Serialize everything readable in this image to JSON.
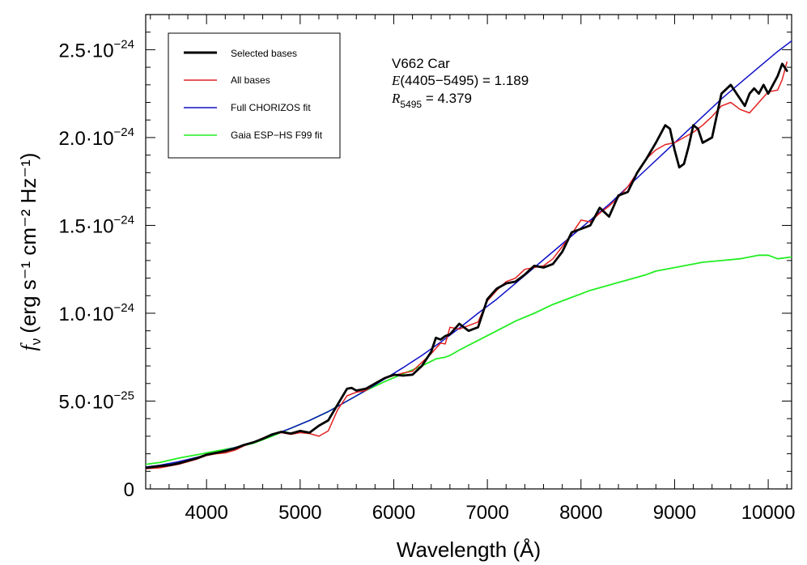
{
  "chart_data": {
    "type": "line",
    "xlabel": "Wavelength (Å)",
    "ylabel_f": "f",
    "ylabel_sub": "ν",
    "ylabel_rest": "(erg s⁻¹ cm⁻² Hz⁻¹)",
    "xlim": [
      3350,
      10250
    ],
    "ylim": [
      0,
      2.7e-24
    ],
    "x_ticks": [
      4000,
      5000,
      6000,
      7000,
      8000,
      9000,
      10000
    ],
    "x_tick_labels": [
      "4000",
      "5000",
      "6000",
      "7000",
      "8000",
      "9000",
      "10000"
    ],
    "y_ticks": [
      0,
      5e-25,
      1e-24,
      1.5e-24,
      2e-24,
      2.5e-24
    ],
    "y_tick_mantissa": [
      "0",
      "5.0·10",
      "1.0·10",
      "1.5·10",
      "2.0·10",
      "2.5·10"
    ],
    "y_tick_exponent": [
      "",
      "−25",
      "−24",
      "−24",
      "−24",
      "−24"
    ],
    "annotation": {
      "line1": "V662 Car",
      "line2_italic": "E",
      "line2_rest": "(4405−5495) = 1.189",
      "line3_italic": "R",
      "line3_sub": "5495",
      "line3_rest": " = 4.379"
    },
    "legend_position": "top-left",
    "series": [
      {
        "name": "Selected bases",
        "color": "#000000",
        "x": [
          3350,
          3500,
          3600,
          3700,
          3800,
          3900,
          4000,
          4100,
          4200,
          4300,
          4400,
          4500,
          4600,
          4700,
          4800,
          4900,
          5000,
          5100,
          5200,
          5300,
          5400,
          5500,
          5550,
          5600,
          5700,
          5800,
          5900,
          6000,
          6100,
          6200,
          6300,
          6400,
          6450,
          6500,
          6550,
          6600,
          6700,
          6800,
          6900,
          7000,
          7100,
          7200,
          7300,
          7400,
          7500,
          7600,
          7700,
          7800,
          7900,
          8000,
          8100,
          8200,
          8300,
          8400,
          8500,
          8600,
          8700,
          8800,
          8900,
          8950,
          9000,
          9050,
          9100,
          9150,
          9200,
          9250,
          9300,
          9400,
          9500,
          9600,
          9700,
          9750,
          9800,
          9850,
          9900,
          9950,
          10000,
          10050,
          10100,
          10150,
          10200
        ],
        "values": [
          1.2e-25,
          1.3e-25,
          1.35e-25,
          1.45e-25,
          1.6e-25,
          1.75e-25,
          1.95e-25,
          2.05e-25,
          2.15e-25,
          2.3e-25,
          2.5e-25,
          2.65e-25,
          2.85e-25,
          3.1e-25,
          3.25e-25,
          3.15e-25,
          3.3e-25,
          3.2e-25,
          3.6e-25,
          3.9e-25,
          4.8e-25,
          5.7e-25,
          5.75e-25,
          5.6e-25,
          5.7e-25,
          6e-25,
          6.3e-25,
          6.5e-25,
          6.45e-25,
          6.5e-25,
          7e-25,
          7.8e-25,
          8.6e-25,
          8.5e-25,
          8.7e-25,
          8.8e-25,
          9.4e-25,
          9e-25,
          9.2e-25,
          1.08e-24,
          1.14e-24,
          1.17e-24,
          1.18e-24,
          1.22e-24,
          1.27e-24,
          1.26e-24,
          1.28e-24,
          1.35e-24,
          1.46e-24,
          1.48e-24,
          1.5e-24,
          1.6e-24,
          1.55e-24,
          1.67e-24,
          1.69e-24,
          1.8e-24,
          1.88e-24,
          1.97e-24,
          2.07e-24,
          2.05e-24,
          1.93e-24,
          1.83e-24,
          1.85e-24,
          1.95e-24,
          2.07e-24,
          2.05e-24,
          1.97e-24,
          2e-24,
          2.25e-24,
          2.3e-24,
          2.22e-24,
          2.18e-24,
          2.25e-24,
          2.28e-24,
          2.25e-24,
          2.3e-24,
          2.25e-24,
          2.3e-24,
          2.35e-24,
          2.42e-24,
          2.38e-24
        ]
      },
      {
        "name": "All bases",
        "color": "#e32020",
        "x": [
          3350,
          3500,
          3600,
          3700,
          3800,
          3900,
          4000,
          4100,
          4200,
          4300,
          4400,
          4500,
          4600,
          4700,
          4800,
          4900,
          5000,
          5100,
          5200,
          5300,
          5400,
          5500,
          5600,
          5700,
          5800,
          5900,
          6000,
          6100,
          6200,
          6300,
          6400,
          6500,
          6550,
          6600,
          6700,
          6800,
          6900,
          7000,
          7100,
          7200,
          7300,
          7400,
          7500,
          7600,
          7700,
          7800,
          7900,
          8000,
          8100,
          8200,
          8300,
          8400,
          8500,
          8600,
          8700,
          8800,
          8900,
          9000,
          9100,
          9200,
          9300,
          9400,
          9500,
          9600,
          9700,
          9800,
          9900,
          10000,
          10100,
          10150,
          10200
        ],
        "values": [
          1.15e-25,
          1.2e-25,
          1.3e-25,
          1.4e-25,
          1.55e-25,
          1.7e-25,
          1.9e-25,
          2e-25,
          2.05e-25,
          2.2e-25,
          2.45e-25,
          2.65e-25,
          2.9e-25,
          3.1e-25,
          3.2e-25,
          3.1e-25,
          3.2e-25,
          3.15e-25,
          3e-25,
          3.3e-25,
          4.5e-25,
          5.3e-25,
          5.5e-25,
          5.6e-25,
          6e-25,
          6.3e-25,
          6.45e-25,
          6.6e-25,
          6.7e-25,
          7.2e-25,
          7.7e-25,
          8.3e-25,
          8.25e-25,
          9.2e-25,
          9.1e-25,
          9.3e-25,
          9.5e-25,
          1.07e-24,
          1.13e-24,
          1.18e-24,
          1.2e-24,
          1.25e-24,
          1.26e-24,
          1.27e-24,
          1.31e-24,
          1.38e-24,
          1.45e-24,
          1.53e-24,
          1.52e-24,
          1.57e-24,
          1.61e-24,
          1.66e-24,
          1.72e-24,
          1.8e-24,
          1.88e-24,
          1.93e-24,
          1.96e-24,
          1.97e-24,
          2e-24,
          2.03e-24,
          2.07e-24,
          2.12e-24,
          2.18e-24,
          2.2e-24,
          2.16e-24,
          2.14e-24,
          2.2e-24,
          2.26e-24,
          2.27e-24,
          2.33e-24,
          2.43e-24
        ]
      },
      {
        "name": "Full CHORIZOS fit",
        "color": "#1010c8",
        "x": [
          3350,
          3500,
          3700,
          3900,
          4100,
          4300,
          4500,
          4700,
          4900,
          5100,
          5300,
          5500,
          5700,
          5900,
          6100,
          6300,
          6500,
          6700,
          6900,
          7100,
          7300,
          7500,
          7700,
          7900,
          8100,
          8300,
          8500,
          8700,
          8900,
          9100,
          9300,
          9500,
          9700,
          9900,
          10100,
          10250
        ],
        "values": [
          1.25e-25,
          1.35e-25,
          1.55e-25,
          1.8e-25,
          2.05e-25,
          2.35e-25,
          2.65e-25,
          3.05e-25,
          3.45e-25,
          3.9e-25,
          4.4e-25,
          5e-25,
          5.6e-25,
          6.25e-25,
          6.9e-25,
          7.6e-25,
          8.35e-25,
          9.15e-25,
          1e-24,
          1.08e-24,
          1.17e-24,
          1.26e-24,
          1.35e-24,
          1.44e-24,
          1.53e-24,
          1.62e-24,
          1.72e-24,
          1.82e-24,
          1.92e-24,
          2.02e-24,
          2.12e-24,
          2.22e-24,
          2.31e-24,
          2.4e-24,
          2.49e-24,
          2.55e-24
        ]
      },
      {
        "name": "Gaia ESP−HS F99 fit",
        "color": "#22ee22",
        "x": [
          3350,
          3500,
          3700,
          3900,
          4100,
          4300,
          4500,
          4700,
          4900,
          5100,
          5300,
          5500,
          5700,
          5900,
          6100,
          6300,
          6450,
          6550,
          6600,
          6700,
          6900,
          7100,
          7300,
          7500,
          7700,
          7900,
          8100,
          8300,
          8500,
          8700,
          8800,
          8900,
          9100,
          9300,
          9500,
          9700,
          9900,
          10000,
          10100,
          10250
        ],
        "values": [
          1.4e-25,
          1.5e-25,
          1.75e-25,
          1.95e-25,
          2.15e-25,
          2.35e-25,
          2.6e-25,
          3e-25,
          3.45e-25,
          3.9e-25,
          4.4e-25,
          5e-25,
          5.6e-25,
          6.1e-25,
          6.55e-25,
          7e-25,
          7.4e-25,
          7.5e-25,
          7.6e-25,
          7.9e-25,
          8.45e-25,
          9e-25,
          9.55e-25,
          1e-24,
          1.05e-24,
          1.09e-24,
          1.13e-24,
          1.16e-24,
          1.19e-24,
          1.22e-24,
          1.24e-24,
          1.25e-24,
          1.27e-24,
          1.29e-24,
          1.3e-24,
          1.31e-24,
          1.33e-24,
          1.33e-24,
          1.31e-24,
          1.32e-24
        ]
      }
    ]
  }
}
